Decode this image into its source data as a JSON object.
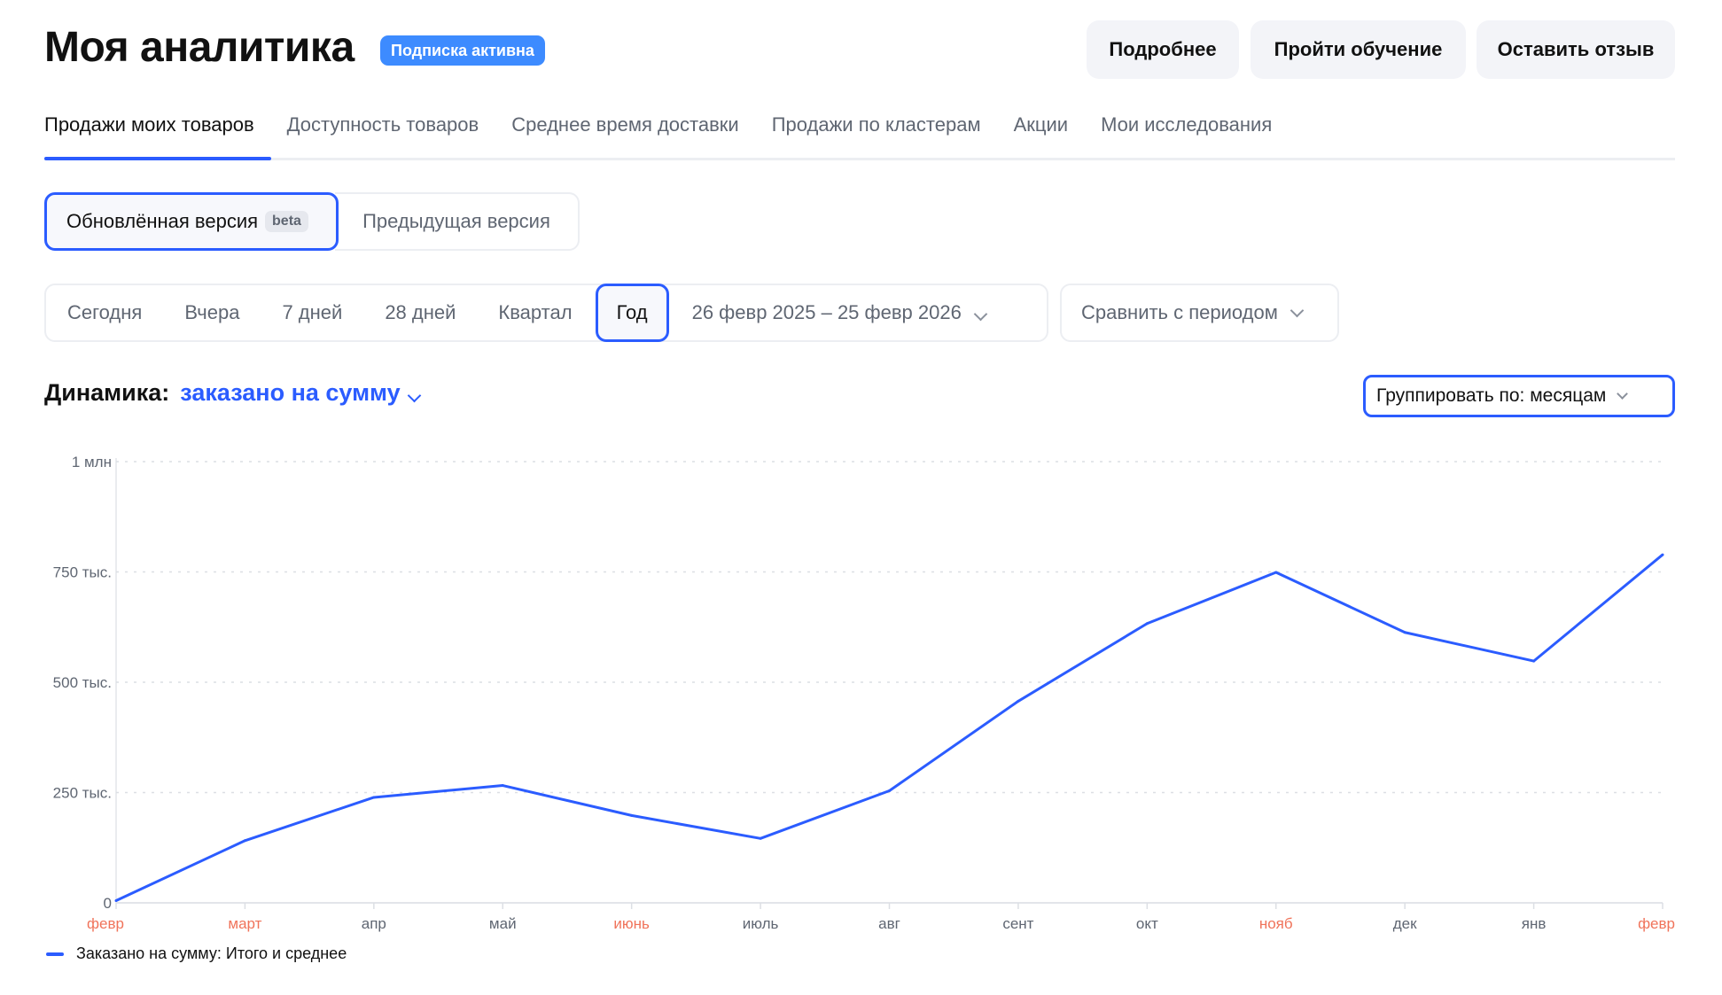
{
  "header": {
    "title": "Моя аналитика",
    "badge": "Подписка активна",
    "buttons": [
      "Подробнее",
      "Пройти обучение",
      "Оставить отзыв"
    ]
  },
  "tabs": [
    "Продажи моих товаров",
    "Доступность товаров",
    "Среднее время доставки",
    "Продажи по кластерам",
    "Акции",
    "Мои исследования"
  ],
  "version": {
    "new": "Обновлённая версия",
    "beta": "beta",
    "old": "Предыдущая версия"
  },
  "period": {
    "options": [
      "Сегодня",
      "Вчера",
      "7 дней",
      "28 дней",
      "Квартал",
      "Год"
    ],
    "selected": "Год",
    "range": "26 февр 2025 – 25 февр 2026",
    "compare": "Сравнить с периодом"
  },
  "dynamics": {
    "label": "Динамика:",
    "metric": "заказано на сумму",
    "group": "Группировать по: месяцам"
  },
  "colors": {
    "accent": "#2b5cff",
    "badge": "#3d8bff",
    "holiday": "#f0735a"
  },
  "chart_data": {
    "type": "line",
    "categories": [
      "февр",
      "март",
      "апр",
      "май",
      "июнь",
      "июль",
      "авг",
      "сент",
      "окт",
      "нояб",
      "дек",
      "янв",
      "февр"
    ],
    "highlighted": [
      0,
      1,
      4,
      9,
      12
    ],
    "series": [
      {
        "name": "Заказано на сумму: Итого и среднее",
        "values": [
          5000,
          141000,
          239000,
          266000,
          198000,
          146000,
          254000,
          457000,
          633000,
          749000,
          613000,
          548000,
          789000
        ]
      }
    ],
    "ylim": [
      0,
      1000000
    ],
    "yticks": [
      {
        "v": 0,
        "label": "0"
      },
      {
        "v": 250000,
        "label": "250 тыс."
      },
      {
        "v": 500000,
        "label": "500 тыс."
      },
      {
        "v": 750000,
        "label": "750 тыс."
      },
      {
        "v": 1000000,
        "label": "1 млн"
      }
    ],
    "grid": true,
    "legend": "bottom-left"
  }
}
